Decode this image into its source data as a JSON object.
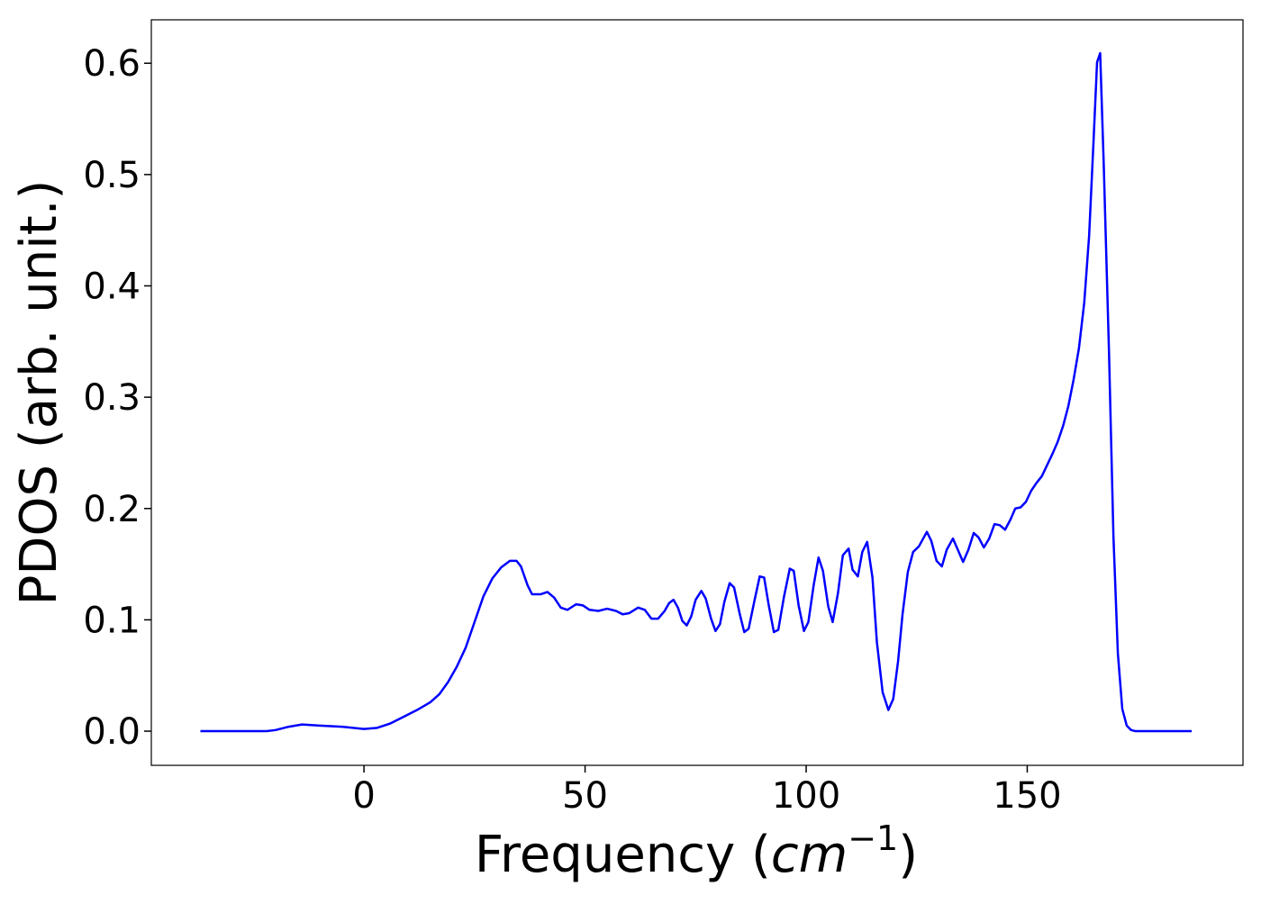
{
  "chart_data": {
    "type": "line",
    "x_label_parts": [
      "Frequency (",
      "cm",
      "−1",
      ")"
    ],
    "y_label": "PDOS (arb. unit.)",
    "xlim": [
      -48.1,
      198.8
    ],
    "ylim": [
      -0.0307,
      0.639
    ],
    "xticks": [
      0,
      50,
      100,
      150
    ],
    "yticks": [
      {
        "value": 0,
        "label": "0.0"
      },
      0.1,
      0.2,
      0.3,
      0.4,
      0.5,
      0.6
    ],
    "series": [
      {
        "color": "#0000ff",
        "x": [
          -37,
          -30,
          -22,
          -20,
          -17,
          -14,
          -10,
          -5,
          0,
          3,
          6,
          9,
          12,
          15,
          17,
          19,
          21,
          23,
          25,
          27,
          29,
          31,
          33,
          34.5,
          35.5,
          37,
          38,
          40,
          41.5,
          43,
          44.5,
          46,
          48,
          49.5,
          51,
          53,
          55,
          57,
          58.5,
          60,
          62,
          63.5,
          65,
          66.5,
          68,
          69,
          70,
          71,
          72,
          73,
          74,
          75,
          76.3,
          77.3,
          78.5,
          79.5,
          80.5,
          81.5,
          82.7,
          83.7,
          85,
          86,
          87,
          88.3,
          89.5,
          90.5,
          91.5,
          92.7,
          93.7,
          95,
          96.3,
          97.2,
          98.3,
          99.5,
          100.5,
          101.7,
          102.8,
          103.8,
          105,
          106,
          107.2,
          108.3,
          109.6,
          110.5,
          111.7,
          112.7,
          113.8,
          115,
          116,
          117.3,
          118.6,
          119.7,
          120.8,
          121.8,
          123,
          124.2,
          125.5,
          127.3,
          128.3,
          129.5,
          130.7,
          131.8,
          133.2,
          134.3,
          135.5,
          136.7,
          137.9,
          139,
          140.2,
          141.4,
          142.6,
          143.8,
          145,
          146.2,
          147.3,
          148.5,
          149.7,
          150.9,
          152.1,
          153.3,
          154.5,
          155.7,
          156.9,
          158.1,
          159.3,
          160.5,
          161.7,
          162.9,
          164,
          165,
          165.8,
          166.5,
          167.3,
          168.5,
          169.5,
          170.5,
          171.5,
          172.5,
          173.5,
          174.5,
          180,
          187.2
        ],
        "values": [
          0,
          0,
          0,
          0.001,
          0.004,
          0.006,
          0.005,
          0.004,
          0.002,
          0.003,
          0.007,
          0.013,
          0.019,
          0.026,
          0.033,
          0.044,
          0.058,
          0.075,
          0.098,
          0.121,
          0.137,
          0.147,
          0.153,
          0.153,
          0.148,
          0.131,
          0.123,
          0.123,
          0.125,
          0.12,
          0.111,
          0.109,
          0.114,
          0.113,
          0.109,
          0.108,
          0.11,
          0.108,
          0.105,
          0.106,
          0.111,
          0.109,
          0.101,
          0.101,
          0.108,
          0.115,
          0.118,
          0.111,
          0.099,
          0.095,
          0.103,
          0.118,
          0.126,
          0.119,
          0.101,
          0.09,
          0.096,
          0.116,
          0.133,
          0.129,
          0.105,
          0.089,
          0.092,
          0.117,
          0.139,
          0.138,
          0.114,
          0.089,
          0.091,
          0.121,
          0.146,
          0.144,
          0.113,
          0.09,
          0.098,
          0.131,
          0.156,
          0.144,
          0.112,
          0.098,
          0.124,
          0.158,
          0.164,
          0.145,
          0.139,
          0.161,
          0.17,
          0.138,
          0.08,
          0.035,
          0.019,
          0.029,
          0.063,
          0.105,
          0.143,
          0.161,
          0.166,
          0.179,
          0.171,
          0.153,
          0.148,
          0.163,
          0.173,
          0.163,
          0.152,
          0.163,
          0.178,
          0.174,
          0.165,
          0.173,
          0.186,
          0.185,
          0.181,
          0.19,
          0.2,
          0.201,
          0.206,
          0.216,
          0.223,
          0.229,
          0.239,
          0.249,
          0.26,
          0.274,
          0.292,
          0.316,
          0.344,
          0.385,
          0.445,
          0.53,
          0.601,
          0.609,
          0.51,
          0.34,
          0.175,
          0.07,
          0.02,
          0.005,
          0.001,
          0,
          0,
          0
        ]
      }
    ]
  }
}
